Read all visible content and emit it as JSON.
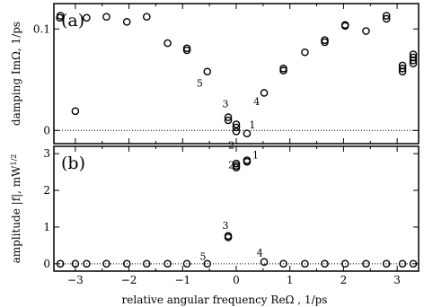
{
  "chart_data": [
    {
      "type": "scatter",
      "panel_label": "(a)",
      "xlabel": "",
      "ylabel": "damping ImΩ, 1/ps",
      "xlim": [
        -3.4,
        3.4
      ],
      "ylim": [
        -0.013,
        0.125
      ],
      "xticks": [
        -3,
        -2,
        -1,
        0,
        1,
        2,
        3
      ],
      "yticks": [
        {
          "value": 0,
          "label": "0"
        },
        {
          "value": 0.1,
          "label": "0.1"
        }
      ],
      "zero_line": true,
      "series": [
        {
          "points": [
            [
              -3.28,
              0.113
            ],
            [
              -3.29,
              0.111
            ],
            [
              -3.0,
              0.019
            ],
            [
              -2.79,
              0.111
            ],
            [
              -2.42,
              0.112
            ],
            [
              -2.04,
              0.107
            ],
            [
              -1.67,
              0.112
            ],
            [
              -1.28,
              0.086
            ],
            [
              -0.92,
              0.081
            ],
            [
              -0.92,
              0.079
            ],
            [
              -0.54,
              0.058
            ],
            [
              -0.15,
              0.013
            ],
            [
              -0.15,
              0.01
            ],
            [
              0.0,
              0.006
            ],
            [
              0.0,
              0.003
            ],
            [
              0.0,
              -0.001
            ],
            [
              0.2,
              -0.003
            ],
            [
              0.52,
              0.037
            ],
            [
              0.88,
              0.061
            ],
            [
              0.88,
              0.059
            ],
            [
              1.28,
              0.077
            ],
            [
              1.65,
              0.089
            ],
            [
              1.65,
              0.087
            ],
            [
              2.03,
              0.104
            ],
            [
              2.03,
              0.103
            ],
            [
              2.42,
              0.098
            ],
            [
              2.8,
              0.113
            ],
            [
              2.8,
              0.11
            ],
            [
              3.1,
              0.064
            ],
            [
              3.1,
              0.061
            ],
            [
              3.1,
              0.058
            ],
            [
              3.3,
              0.075
            ],
            [
              3.3,
              0.072
            ],
            [
              3.3,
              0.069
            ],
            [
              3.3,
              0.066
            ]
          ]
        }
      ],
      "annotations": [
        {
          "text": "1",
          "x": 0.3,
          "y": 0.002
        },
        {
          "text": "2",
          "x": -0.09,
          "y": -0.018
        },
        {
          "text": "3",
          "x": -0.2,
          "y": 0.023
        },
        {
          "text": "4",
          "x": 0.38,
          "y": 0.025
        },
        {
          "text": "5",
          "x": -0.68,
          "y": 0.043
        }
      ]
    },
    {
      "type": "scatter",
      "panel_label": "(b)",
      "xlabel": "relative angular frequency   ReΩ ,       1/ps",
      "ylabel": "amplitude |f|, mW",
      "ylabel_sup": "1/2",
      "xlim": [
        -3.4,
        3.4
      ],
      "ylim": [
        -0.2,
        3.2
      ],
      "xticks": [
        -3,
        -2,
        -1,
        0,
        1,
        2,
        3
      ],
      "yticks": [
        {
          "value": 0,
          "label": "0"
        },
        {
          "value": 1,
          "label": "1"
        },
        {
          "value": 2,
          "label": "2"
        },
        {
          "value": 3,
          "label": "3"
        }
      ],
      "zero_line": true,
      "series": [
        {
          "points": [
            [
              -3.28,
              0.0
            ],
            [
              -3.0,
              0.0
            ],
            [
              -2.79,
              0.0
            ],
            [
              -2.42,
              0.0
            ],
            [
              -2.04,
              0.0
            ],
            [
              -1.67,
              0.0
            ],
            [
              -1.28,
              0.0
            ],
            [
              -0.92,
              0.0
            ],
            [
              -0.54,
              0.0
            ],
            [
              -0.15,
              0.76
            ],
            [
              -0.15,
              0.72
            ],
            [
              0.0,
              2.73
            ],
            [
              0.0,
              2.67
            ],
            [
              0.0,
              2.62
            ],
            [
              0.2,
              2.82
            ],
            [
              0.2,
              2.78
            ],
            [
              0.52,
              0.05
            ],
            [
              0.88,
              0.0
            ],
            [
              1.28,
              0.0
            ],
            [
              1.65,
              0.0
            ],
            [
              2.03,
              0.0
            ],
            [
              2.42,
              0.0
            ],
            [
              2.8,
              0.0
            ],
            [
              3.1,
              0.0
            ],
            [
              3.3,
              0.0
            ]
          ]
        }
      ],
      "annotations": [
        {
          "text": "1",
          "x": 0.36,
          "y": 2.87
        },
        {
          "text": "2",
          "x": -0.09,
          "y": 2.6
        },
        {
          "text": "3",
          "x": -0.2,
          "y": 0.95
        },
        {
          "text": "4",
          "x": 0.44,
          "y": 0.2
        },
        {
          "text": "5",
          "x": -0.62,
          "y": 0.1
        }
      ]
    }
  ]
}
